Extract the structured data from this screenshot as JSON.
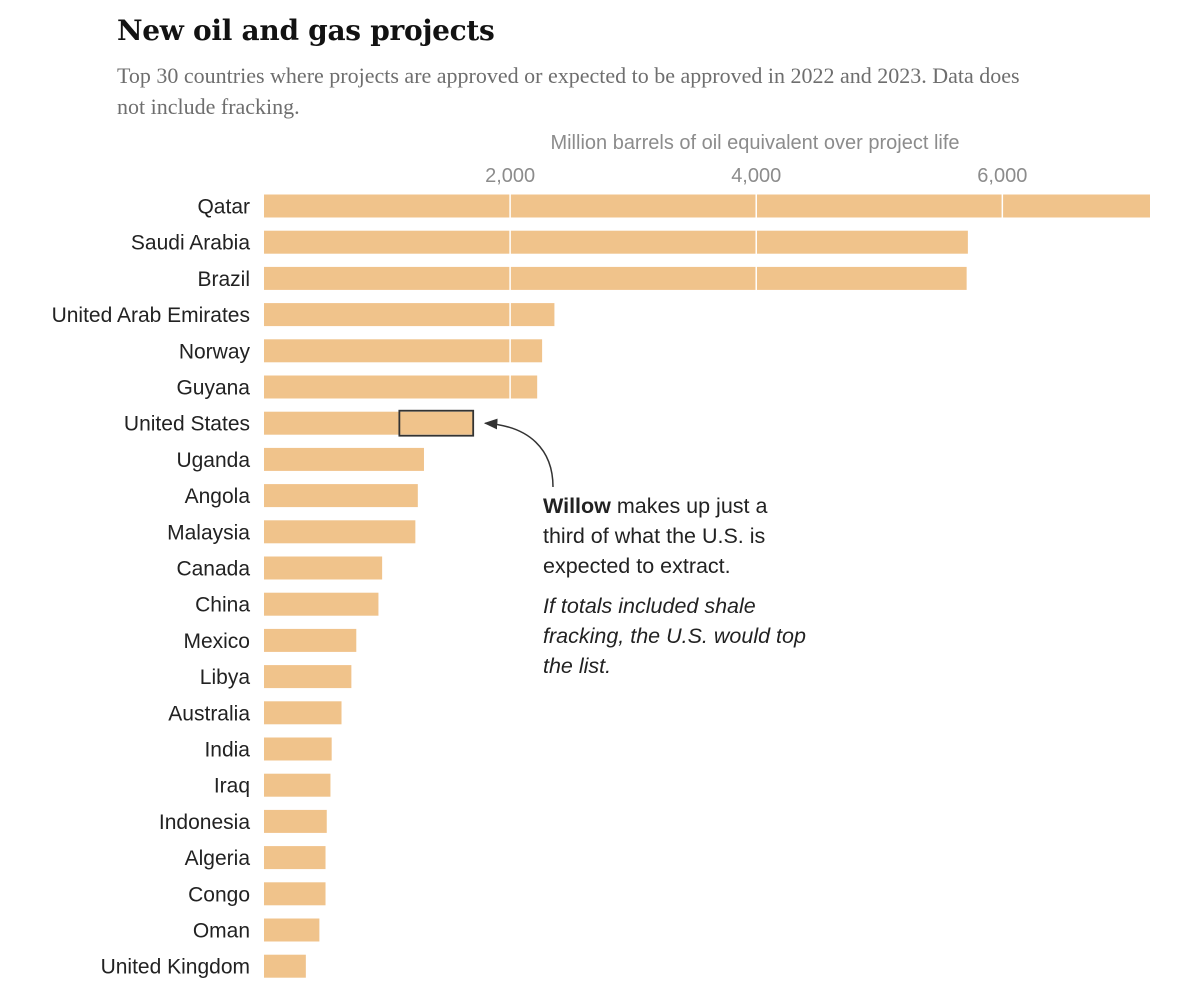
{
  "header": {
    "title": "New oil and gas projects",
    "subtitle": "Top 30 countries where projects are approved or expected to be approved in 2022 and 2023. Data does not include fracking."
  },
  "annotation": {
    "bold": "Willow",
    "text": " makes up just a third of what the U.S. is expected to extract.",
    "note": "If totals included shale fracking, the U.S. would top the list."
  },
  "colors": {
    "bar": "#f0c38b",
    "gridline": "#ffffff",
    "highlight_border": "#333333"
  },
  "chart_data": {
    "type": "bar",
    "orientation": "horizontal",
    "xlabel": "Million barrels of oil equivalent over project life",
    "xticks": [
      2000,
      4000,
      6000
    ],
    "xtick_labels": [
      "2,000",
      "4,000",
      "6,000"
    ],
    "xlim": [
      0,
      7200
    ],
    "grid": true,
    "categories": [
      "Qatar",
      "Saudi Arabia",
      "Brazil",
      "United Arab Emirates",
      "Norway",
      "Guyana",
      "United States",
      "Uganda",
      "Angola",
      "Malaysia",
      "Canada",
      "China",
      "Mexico",
      "Libya",
      "Australia",
      "India",
      "Iraq",
      "Indonesia",
      "Algeria",
      "Congo",
      "Oman",
      "United Kingdom"
    ],
    "values": [
      7200,
      5720,
      5710,
      2360,
      2260,
      2220,
      1700,
      1300,
      1250,
      1230,
      960,
      930,
      750,
      710,
      630,
      550,
      540,
      510,
      500,
      500,
      450,
      340
    ],
    "highlight": {
      "category": "United States",
      "label": "Willow",
      "from": 1100,
      "to": 1700
    }
  }
}
